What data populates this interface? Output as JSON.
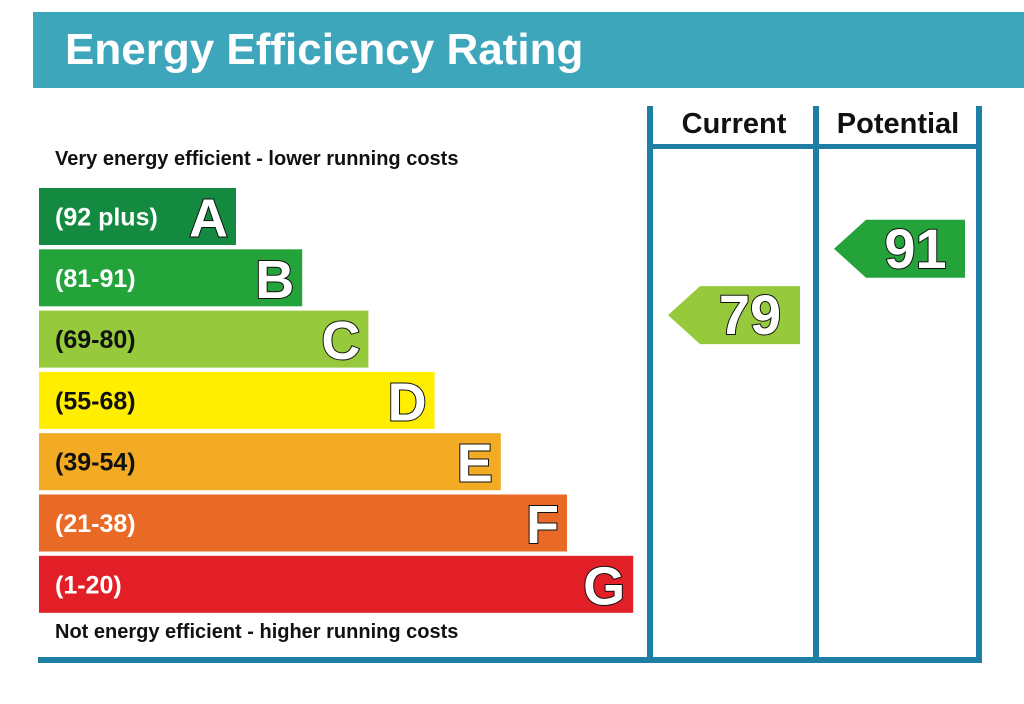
{
  "title": "Energy Efficiency Rating",
  "columns": {
    "current_label": "Current",
    "potential_label": "Potential"
  },
  "captions": {
    "top": "Very energy efficient - lower running costs",
    "bottom": "Not energy efficient - higher running costs"
  },
  "colors": {
    "header": "#3ea6ba",
    "frame": "#1f7ea4"
  },
  "chart_data": {
    "type": "bar",
    "categories": [
      "A",
      "B",
      "C",
      "D",
      "E",
      "F",
      "G"
    ],
    "bands": [
      {
        "letter": "A",
        "range": "(92 plus)",
        "color": "#138a3f"
      },
      {
        "letter": "B",
        "range": "(81-91)",
        "color": "#25a33b"
      },
      {
        "letter": "C",
        "range": "(69-80)",
        "color": "#97c93d"
      },
      {
        "letter": "D",
        "range": "(55-68)",
        "color": "#ffee00"
      },
      {
        "letter": "E",
        "range": "(39-54)",
        "color": "#f2ab22"
      },
      {
        "letter": "F",
        "range": "(21-38)",
        "color": "#e96a26"
      },
      {
        "letter": "G",
        "range": "(1-20)",
        "color": "#e21e27"
      }
    ],
    "current": {
      "value": 79,
      "band": "C",
      "color": "#97c93d"
    },
    "potential": {
      "value": 91,
      "band": "B",
      "color": "#25a33b"
    }
  }
}
